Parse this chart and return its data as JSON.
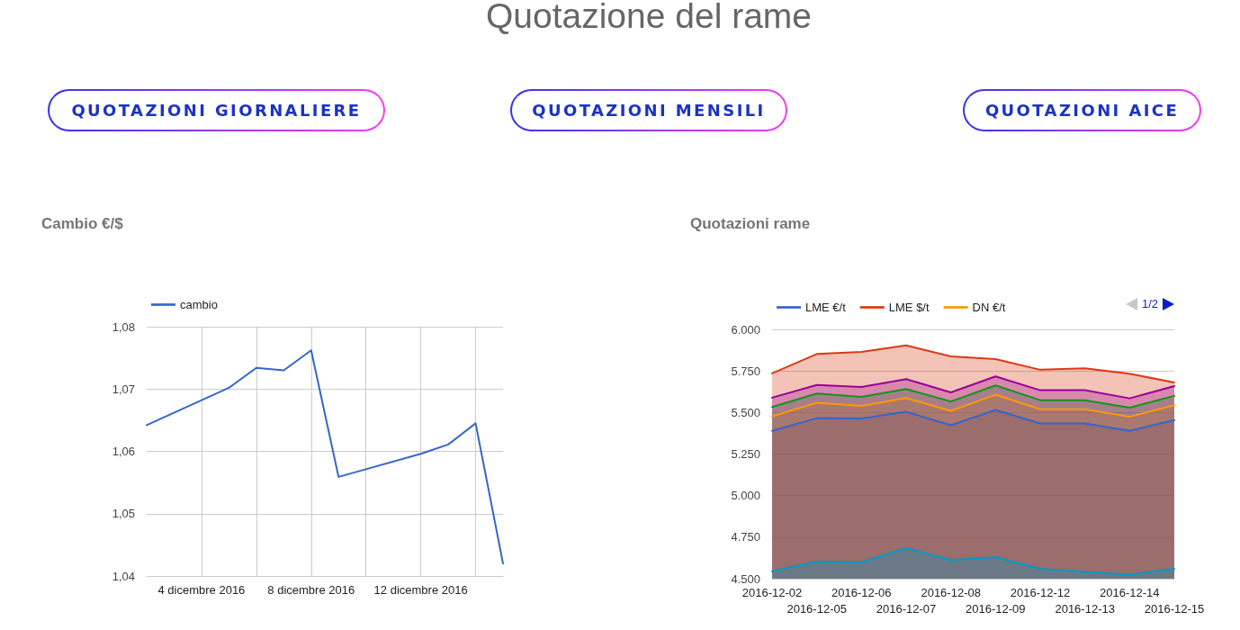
{
  "chart_data": [
    {
      "type": "other",
      "title": "Quotazione del rame",
      "annotations": [
        "QUOTAZIONI GIORNALIERE",
        "QUOTAZIONI MENSILI",
        "QUOTAZIONI AICE"
      ]
    },
    {
      "type": "line",
      "title": "Cambio €/$",
      "x": [
        "2016-12-02",
        "2016-12-05",
        "2016-12-06",
        "2016-12-07",
        "2016-12-08",
        "2016-12-09",
        "2016-12-12",
        "2016-12-13",
        "2016-12-14",
        "2016-12-15"
      ],
      "series": [
        {
          "name": "cambio",
          "color": "#3366cc",
          "values": [
            1.0642,
            1.0702,
            1.0734,
            1.073,
            1.0762,
            1.0559,
            1.0596,
            1.0611,
            1.0645,
            1.042
          ]
        }
      ],
      "xlim": [
        "2016-12-02",
        "2016-12-15"
      ],
      "xticks": [
        {
          "value": "2016-12-04",
          "label": "4 dicembre 2016"
        },
        {
          "value": "2016-12-06",
          "label": null
        },
        {
          "value": "2016-12-08",
          "label": "8 dicembre 2016"
        },
        {
          "value": "2016-12-10",
          "label": null
        },
        {
          "value": "2016-12-12",
          "label": "12 dicembre 2016"
        },
        {
          "value": "2016-12-14",
          "label": null
        }
      ],
      "ylim": [
        1.04,
        1.08
      ],
      "yticks": [
        {
          "value": 1.04,
          "label": "1,04"
        },
        {
          "value": 1.05,
          "label": "1,05"
        },
        {
          "value": 1.06,
          "label": "1,06"
        },
        {
          "value": 1.07,
          "label": "1,07"
        },
        {
          "value": 1.08,
          "label": "1,08"
        }
      ],
      "grid": true,
      "legend": "top left",
      "marker": "none",
      "line_style": "solid"
    },
    {
      "type": "area",
      "title": "Quotazioni rame",
      "categories": [
        "2016-12-02",
        "2016-12-05",
        "2016-12-06",
        "2016-12-07",
        "2016-12-08",
        "2016-12-09",
        "2016-12-12",
        "2016-12-13",
        "2016-12-14",
        "2016-12-15"
      ],
      "series": [
        {
          "name": "LME €/t",
          "color": "#3366cc",
          "values": [
            5389,
            5466,
            5464,
            5504,
            5423,
            5515,
            5434,
            5434,
            5389,
            5454
          ]
        },
        {
          "name": "LME $/t",
          "color": "#dc3912",
          "values": [
            5735,
            5852,
            5865,
            5904,
            5838,
            5821,
            5757,
            5766,
            5733,
            5681
          ]
        },
        {
          "name": "DN €/t",
          "color": "#ff9900",
          "values": [
            5477,
            5558,
            5540,
            5587,
            5510,
            5607,
            5519,
            5519,
            5474,
            5544
          ]
        },
        {
          "color": "#109618",
          "values": [
            5533,
            5614,
            5594,
            5641,
            5566,
            5663,
            5574,
            5574,
            5529,
            5600
          ]
        },
        {
          "color": "#990099",
          "values": [
            5589,
            5666,
            5654,
            5701,
            5621,
            5717,
            5634,
            5634,
            5585,
            5659
          ]
        },
        {
          "color": "#0099c6",
          "values": [
            4545,
            4603,
            4599,
            4684,
            4612,
            4630,
            4560,
            4540,
            4525,
            4560
          ]
        }
      ],
      "ylim": [
        4500,
        6000
      ],
      "yticks": [
        {
          "value": 4500,
          "label": "4.500"
        },
        {
          "value": 4750,
          "label": "4.750"
        },
        {
          "value": 5000,
          "label": "5.000"
        },
        {
          "value": 5250,
          "label": "5.250"
        },
        {
          "value": 5500,
          "label": "5.500"
        },
        {
          "value": 5750,
          "label": "5.750"
        },
        {
          "value": 6000,
          "label": "6.000"
        }
      ],
      "grid": "y",
      "legend": "top left",
      "marker": "none",
      "line_style": "solid",
      "annotations": [
        "1/2"
      ]
    }
  ]
}
